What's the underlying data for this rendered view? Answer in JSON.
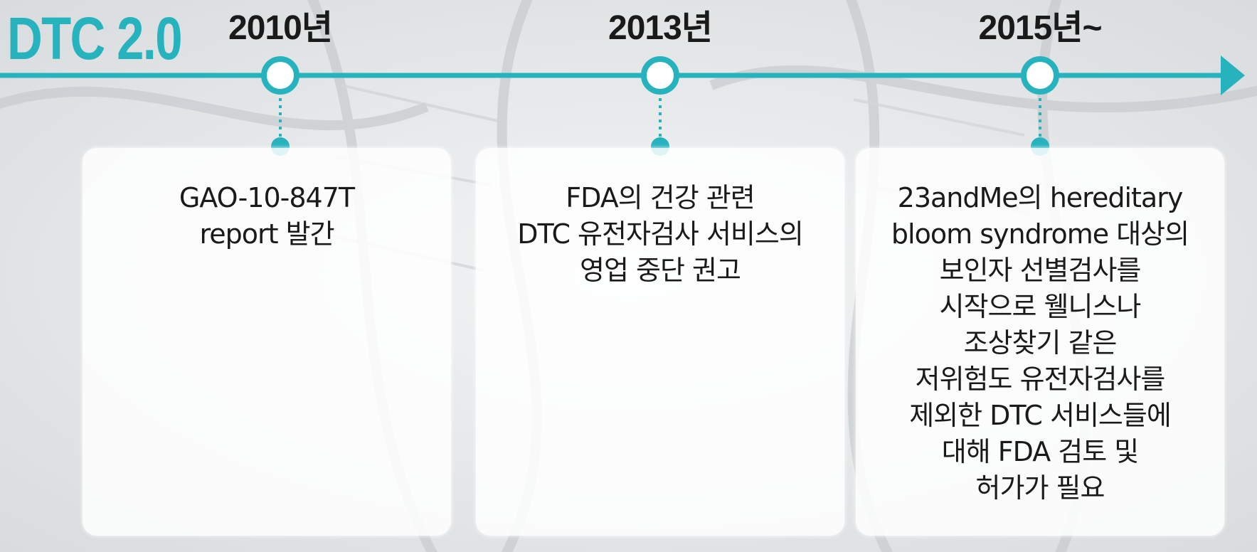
{
  "title": "DTC 2.0",
  "accent_color": "#27b3be",
  "milestones": [
    {
      "year": "2010년",
      "lines": [
        "GAO-10-847T",
        "report 발간"
      ]
    },
    {
      "year": "2013년",
      "lines": [
        "FDA의 건강 관련",
        "DTC 유전자검사 서비스의",
        "영업 중단 권고"
      ]
    },
    {
      "year": "2015년~",
      "lines": [
        "23andMe의 hereditary",
        "bloom syndrome 대상의",
        "보인자 선별검사를",
        "시작으로 웰니스나",
        "조상찾기 같은",
        "저위험도 유전자검사를",
        "제외한 DTC 서비스들에",
        "대해 FDA 검토 및",
        "허가가 필요"
      ]
    }
  ]
}
